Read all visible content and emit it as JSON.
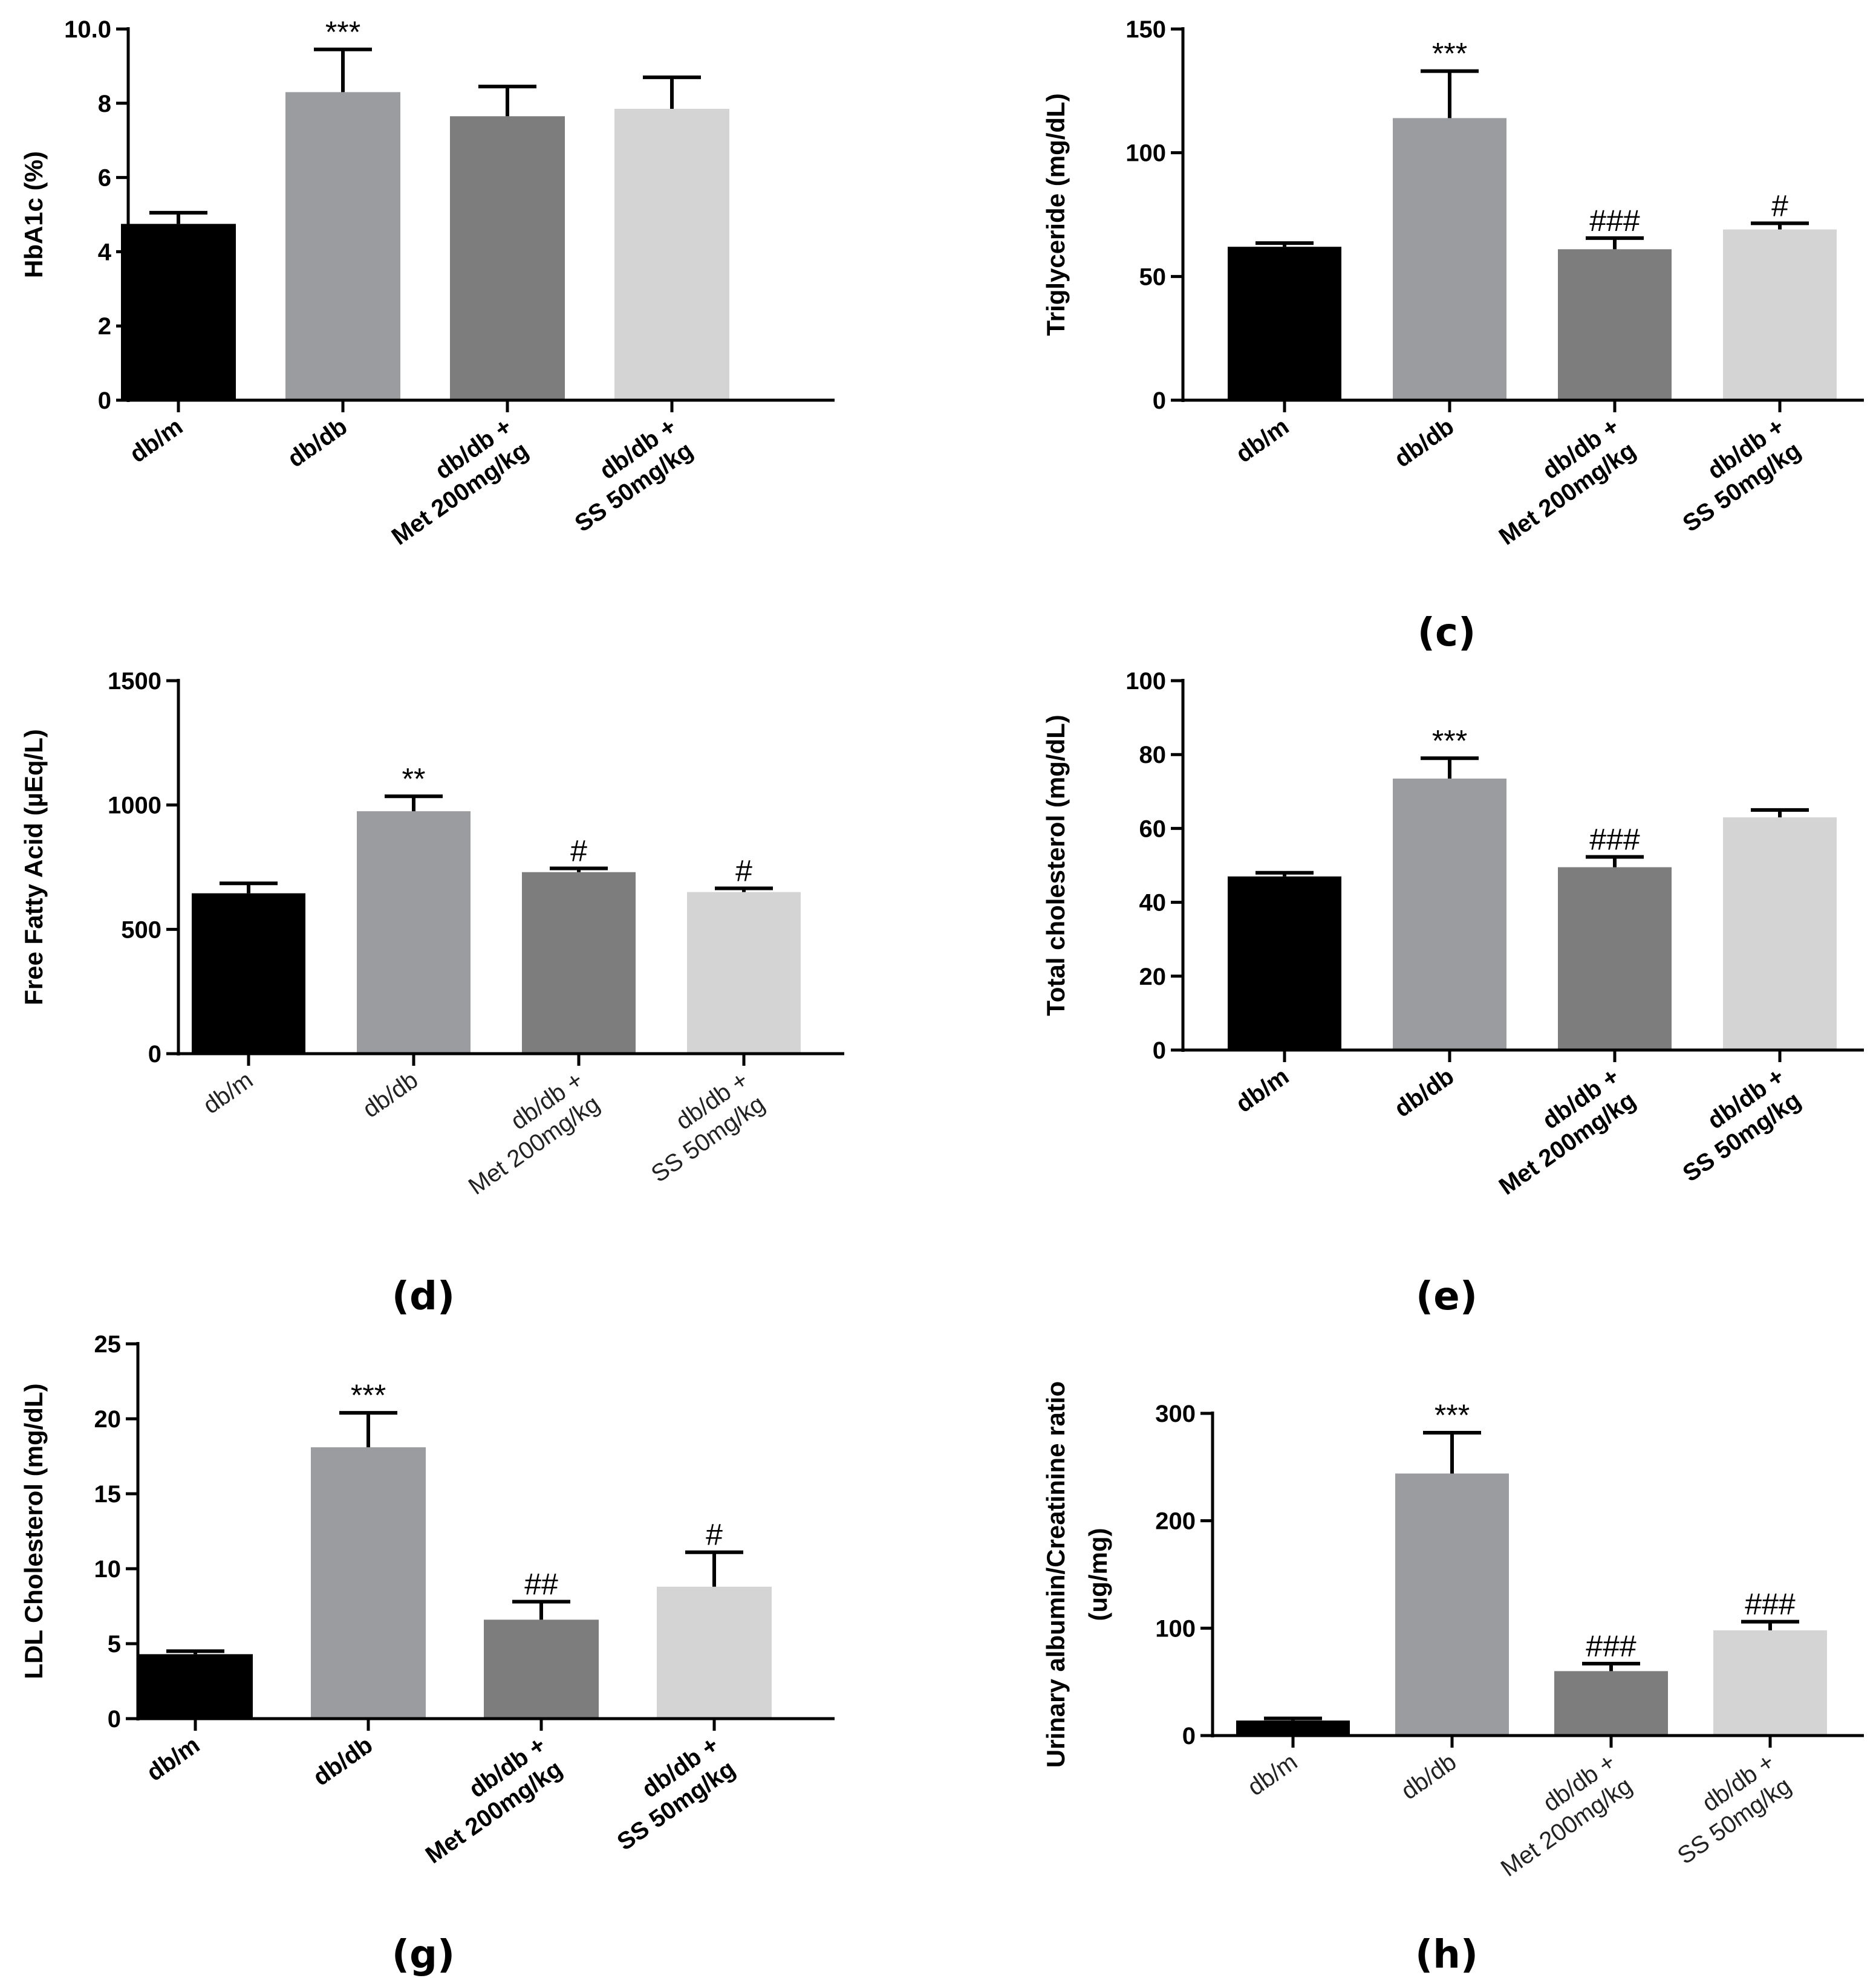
{
  "chart_data": [
    {
      "type": "bar",
      "panel_label": "",
      "ylabel": "HbA1c (%)",
      "ylim": [
        0,
        10
      ],
      "yticks": [
        "0",
        "2",
        "4",
        "6",
        "8",
        "10.0"
      ],
      "categories": [
        "db/m",
        "db/db",
        "db/db +\nMet 200mg/kg",
        "db/db +\nSS 50mg/kg"
      ],
      "values": [
        4.75,
        8.3,
        7.65,
        7.85
      ],
      "errors": [
        0.3,
        1.15,
        0.8,
        0.85
      ],
      "annotations": [
        "",
        "***",
        "",
        ""
      ],
      "label_style": "bold"
    },
    {
      "type": "bar",
      "panel_label": "",
      "ylabel": "Triglyceride (mg/dL)",
      "ylim": [
        0,
        150
      ],
      "yticks": [
        "0",
        "50",
        "100",
        "150"
      ],
      "categories": [
        "db/m",
        "db/db",
        "db/db +\nMet 200mg/kg",
        "db/db +\nSS 50mg/kg"
      ],
      "values": [
        62,
        114,
        61,
        69
      ],
      "errors": [
        1.5,
        19,
        4.5,
        2.5
      ],
      "annotations": [
        "",
        "***",
        "###",
        "#"
      ],
      "label_style": "bold"
    },
    {
      "type": "bar",
      "panel_label": "(c)",
      "ylabel": "Free Fatty Acid (µEq/L)",
      "ylim": [
        0,
        1500
      ],
      "yticks": [
        "0",
        "500",
        "1000",
        "1500"
      ],
      "categories": [
        "db/m",
        "db/db",
        "db/db +\nMet 200mg/kg",
        "db/db +\nSS 50mg/kg"
      ],
      "values": [
        645,
        975,
        730,
        650
      ],
      "errors": [
        40,
        60,
        15,
        15
      ],
      "annotations": [
        "",
        "**",
        "#",
        "#"
      ],
      "label_style": "light"
    },
    {
      "type": "bar",
      "panel_label": "(d)",
      "ylabel": "Total cholesterol (mg/dL)",
      "ylim": [
        0,
        100
      ],
      "yticks": [
        "0",
        "20",
        "40",
        "60",
        "80",
        "100"
      ],
      "categories": [
        "db/m",
        "db/db",
        "db/db +\nMet 200mg/kg",
        "db/db +\nSS 50mg/kg"
      ],
      "values": [
        47,
        73.5,
        49.5,
        63
      ],
      "errors": [
        1,
        5.5,
        2.8,
        2
      ],
      "annotations": [
        "",
        "***",
        "###",
        ""
      ],
      "label_style": "bold"
    },
    {
      "type": "bar",
      "panel_label": "(e)",
      "ylabel": "LDL Cholesterol (mg/dL)",
      "ylim": [
        0,
        25
      ],
      "yticks": [
        "0",
        "5",
        "10",
        "15",
        "20",
        "25"
      ],
      "categories": [
        "db/m",
        "db/db",
        "db/db +\nMet 200mg/kg",
        "db/db +\nSS 50mg/kg"
      ],
      "values": [
        4.3,
        18.1,
        6.6,
        8.8
      ],
      "errors": [
        0.2,
        2.3,
        1.2,
        2.3
      ],
      "annotations": [
        "",
        "***",
        "##",
        "#"
      ],
      "label_style": "bold"
    },
    {
      "type": "bar",
      "panel_label": "(f)",
      "ylabel": "Urinary albumin/Creatinine ratio\n(ug/mg)",
      "ylim": [
        0,
        300
      ],
      "yticks": [
        "0",
        "100",
        "200",
        "300"
      ],
      "categories": [
        "db/m",
        "db/db",
        "db/db +\nMet 200mg/kg",
        "db/db +\nSS 50mg/kg"
      ],
      "values": [
        14,
        244,
        60,
        98
      ],
      "errors": [
        2,
        38,
        7,
        8
      ],
      "annotations": [
        "",
        "***",
        "###",
        "###"
      ],
      "label_style": "light"
    }
  ],
  "bottom_labels": [
    "(g)",
    "(h)"
  ],
  "colors": {
    "db_m": "#000000",
    "db_db": "#9b9ca0",
    "met": "#7d7d7d",
    "ss": "#d4d4d4"
  }
}
